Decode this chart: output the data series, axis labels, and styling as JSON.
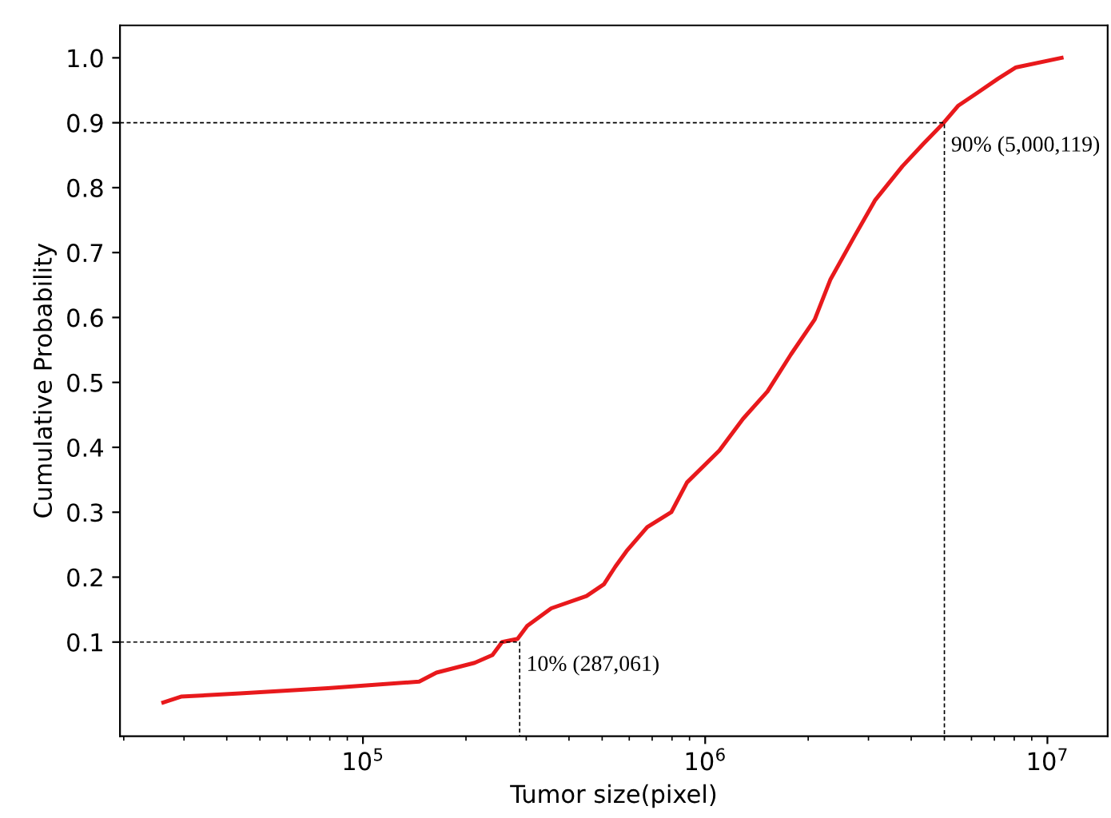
{
  "chart_data": {
    "type": "line",
    "xlabel": "Tumor size(pixel)",
    "ylabel": "Cumulative Probability",
    "log": "x",
    "grid": false,
    "legend": false,
    "xlim": [
      19500,
      15000000
    ],
    "xticks": [
      {
        "value": 100000,
        "label": "10$^{5}$"
      },
      {
        "value": 1000000,
        "label": "10$^{6}$"
      },
      {
        "value": 10000000,
        "label": "10$^{7}$"
      }
    ],
    "ylim": [
      -0.045,
      1.05
    ],
    "yticks": [
      0.1,
      0.2,
      0.3,
      0.4,
      0.5,
      0.6,
      0.7,
      0.8,
      0.9,
      {
        "value": 1.0,
        "label": "1.0"
      }
    ],
    "series": [
      {
        "color": "#e8191c",
        "line_style": "solid",
        "x": [
          26100,
          29400,
          43700,
          78900,
          146000,
          164000,
          212000,
          239000,
          255000,
          283000,
          302000,
          355000,
          450000,
          506000,
          546000,
          589000,
          677000,
          796000,
          885000,
          1100000,
          1290000,
          1520000,
          1780000,
          2090000,
          2320000,
          2730000,
          3140000,
          3770000,
          4330000,
          4920000,
          5480000,
          6240000,
          7180000,
          8070000,
          11000000
        ],
        "values": [
          0.007,
          0.016,
          0.021,
          0.029,
          0.039,
          0.053,
          0.068,
          0.08,
          0.1,
          0.105,
          0.125,
          0.152,
          0.171,
          0.189,
          0.216,
          0.24,
          0.277,
          0.3,
          0.346,
          0.395,
          0.444,
          0.486,
          0.543,
          0.597,
          0.658,
          0.725,
          0.781,
          0.833,
          0.867,
          0.897,
          0.926,
          0.946,
          0.968,
          0.985,
          1.0
        ]
      },
      {
        "color": "#000000",
        "line_style": "dashed",
        "x": [
          19500,
          287061,
          287061
        ],
        "values": [
          0.1,
          0.1,
          -0.045
        ]
      },
      {
        "color": "#000000",
        "line_style": "dashed",
        "x": [
          19500,
          5000119,
          5000119
        ],
        "values": [
          0.9,
          0.9,
          -0.045
        ]
      }
    ],
    "annotations": [
      {
        "text": "10% (287,061)",
        "x": 287061,
        "y": 0.1
      },
      {
        "text": "90% (5,000,119)",
        "x": 5000119,
        "y": 0.9
      }
    ]
  }
}
